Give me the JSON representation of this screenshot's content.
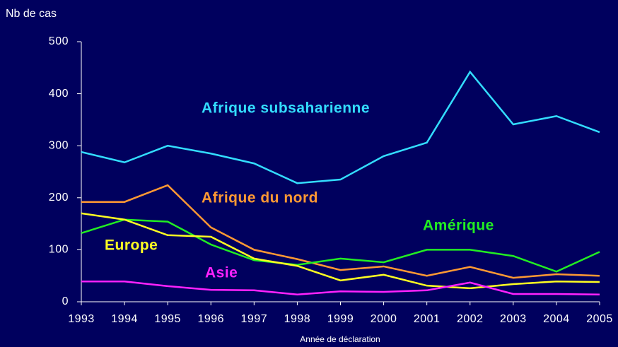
{
  "chart_data": {
    "type": "line",
    "y_label": "Nb de cas",
    "x_label": "Année de déclaration",
    "x": [
      1993,
      1994,
      1995,
      1996,
      1997,
      1998,
      1999,
      2000,
      2001,
      2002,
      2003,
      2004,
      2005
    ],
    "xlim": [
      1993,
      2005
    ],
    "xticks": [
      1993,
      1994,
      1995,
      1996,
      1997,
      1998,
      1999,
      2000,
      2001,
      2002,
      2003,
      2004,
      2005
    ],
    "ylim": [
      0,
      500
    ],
    "yticks": [
      0,
      100,
      200,
      300,
      400,
      500
    ],
    "grid": false,
    "series": [
      {
        "name": "Afrique subsaharienne",
        "color": "#33ddff",
        "values": [
          288,
          268,
          300,
          285,
          266,
          228,
          235,
          280,
          306,
          442,
          341,
          357,
          326
        ]
      },
      {
        "name": "Afrique du nord",
        "color": "#ff9933",
        "values": [
          192,
          192,
          224,
          143,
          100,
          82,
          61,
          68,
          50,
          67,
          46,
          53,
          50
        ]
      },
      {
        "name": "Amérique",
        "color": "#22ee22",
        "values": [
          132,
          158,
          154,
          110,
          80,
          71,
          83,
          76,
          100,
          100,
          88,
          58,
          96
        ]
      },
      {
        "name": "Europe",
        "color": "#ffff22",
        "values": [
          170,
          158,
          128,
          125,
          83,
          69,
          41,
          52,
          31,
          26,
          34,
          39,
          38
        ]
      },
      {
        "name": "Asie",
        "color": "#ff22ff",
        "values": [
          39,
          39,
          30,
          23,
          22,
          14,
          20,
          19,
          22,
          37,
          15,
          15,
          14
        ]
      }
    ]
  }
}
